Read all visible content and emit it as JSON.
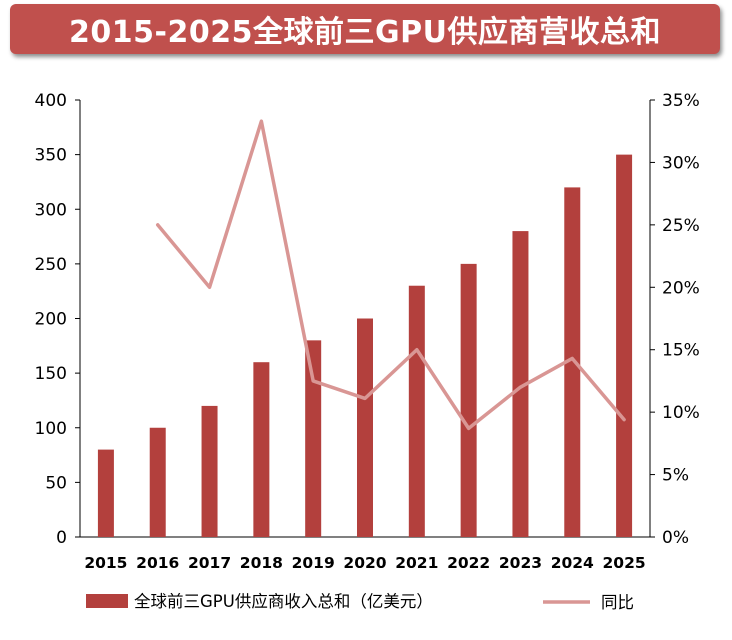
{
  "chart_data": {
    "type": "bar",
    "title": "2015-2025全球前三GPU供应商营收总和",
    "categories": [
      "2015",
      "2016",
      "2017",
      "2018",
      "2019",
      "2020",
      "2021",
      "2022",
      "2023",
      "2024",
      "2025"
    ],
    "series": [
      {
        "name": "全球前三GPU供应商收入总和（亿美元）",
        "type": "bar",
        "axis": "left",
        "values": [
          80,
          100,
          120,
          160,
          180,
          200,
          230,
          250,
          280,
          320,
          350
        ]
      },
      {
        "name": "同比",
        "type": "line",
        "axis": "right",
        "values": [
          null,
          25.0,
          20.0,
          33.3,
          12.5,
          11.1,
          15.0,
          8.7,
          12.0,
          14.3,
          9.4
        ]
      }
    ],
    "ylim_left": [
      0,
      400
    ],
    "yticks_left": [
      "0",
      "50",
      "100",
      "150",
      "200",
      "250",
      "300",
      "350",
      "400"
    ],
    "ylim_right": [
      0,
      35
    ],
    "yticks_right": [
      "0%",
      "5%",
      "10%",
      "15%",
      "20%",
      "25%",
      "30%",
      "35%"
    ],
    "grid": false,
    "legend_position": "bottom",
    "colors": {
      "bar": "#b3403d",
      "line": "#d99694",
      "title_bg": "#c0504d"
    }
  }
}
